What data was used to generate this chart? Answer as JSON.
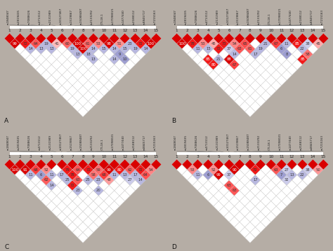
{
  "background_color": "#b5ada5",
  "n_snps": 15,
  "snp_labels": [
    "rs1848047",
    "rs2819435",
    "rs7088626",
    "rs4713112",
    "rs2131989",
    "rs10127467",
    "rs1519867",
    "rs15088487",
    "rs2133292",
    "CTL18.1",
    "rs17098021",
    "rs1477440",
    "rs2188112",
    "rs8845717",
    "rs7215163"
  ],
  "panels": [
    {
      "label": "A",
      "matrix": [
        [
          100,
          99,
          4,
          4,
          4,
          4,
          4,
          4,
          4,
          4,
          4,
          4,
          4,
          4,
          4
        ],
        [
          4,
          100,
          72,
          14,
          4,
          4,
          4,
          4,
          4,
          4,
          4,
          4,
          4,
          4,
          4
        ],
        [
          4,
          4,
          100,
          64,
          13,
          4,
          4,
          4,
          4,
          4,
          4,
          4,
          4,
          4,
          4
        ],
        [
          4,
          4,
          4,
          100,
          19,
          13,
          4,
          4,
          4,
          4,
          4,
          4,
          4,
          4,
          4
        ],
        [
          4,
          4,
          4,
          4,
          100,
          41,
          4,
          4,
          4,
          4,
          4,
          4,
          4,
          4,
          4
        ],
        [
          4,
          4,
          4,
          4,
          4,
          100,
          60,
          19,
          13,
          4,
          4,
          4,
          4,
          4,
          4
        ],
        [
          4,
          4,
          4,
          4,
          4,
          4,
          100,
          100,
          100,
          18,
          13,
          4,
          4,
          4,
          4
        ],
        [
          4,
          4,
          4,
          4,
          4,
          4,
          4,
          100,
          61,
          14,
          4,
          4,
          4,
          4,
          4
        ],
        [
          4,
          4,
          4,
          4,
          4,
          4,
          4,
          4,
          100,
          53,
          15,
          4,
          14,
          4,
          4
        ],
        [
          4,
          4,
          4,
          4,
          4,
          4,
          4,
          4,
          4,
          100,
          98,
          14,
          9,
          10,
          4
        ],
        [
          4,
          4,
          4,
          4,
          4,
          4,
          4,
          4,
          4,
          4,
          100,
          51,
          15,
          4,
          4
        ],
        [
          4,
          4,
          4,
          4,
          4,
          4,
          4,
          4,
          4,
          4,
          4,
          100,
          23,
          19,
          4
        ],
        [
          4,
          4,
          4,
          4,
          4,
          4,
          4,
          4,
          4,
          4,
          4,
          4,
          100,
          72,
          14
        ],
        [
          4,
          4,
          4,
          4,
          4,
          4,
          4,
          4,
          4,
          4,
          4,
          4,
          4,
          100,
          100
        ],
        [
          4,
          4,
          4,
          4,
          4,
          4,
          4,
          4,
          4,
          4,
          4,
          4,
          4,
          4,
          100
        ]
      ]
    },
    {
      "label": "B",
      "matrix": [
        [
          100,
          100,
          4,
          4,
          4,
          4,
          4,
          4,
          4,
          4,
          4,
          4,
          4,
          4,
          4
        ],
        [
          4,
          100,
          78,
          11,
          4,
          85,
          80,
          4,
          4,
          4,
          4,
          4,
          4,
          4,
          4
        ],
        [
          4,
          4,
          100,
          53,
          15,
          4,
          21,
          4,
          4,
          4,
          4,
          4,
          4,
          4,
          4
        ],
        [
          4,
          4,
          4,
          100,
          45,
          72,
          4,
          88,
          67,
          4,
          4,
          4,
          4,
          4,
          4
        ],
        [
          4,
          4,
          4,
          4,
          100,
          73,
          37,
          14,
          4,
          4,
          4,
          4,
          4,
          4,
          4
        ],
        [
          4,
          4,
          4,
          4,
          4,
          100,
          54,
          63,
          4,
          4,
          4,
          4,
          4,
          4,
          4
        ],
        [
          4,
          4,
          4,
          4,
          4,
          4,
          100,
          65,
          61,
          17,
          4,
          4,
          4,
          4,
          4
        ],
        [
          4,
          4,
          4,
          4,
          4,
          4,
          4,
          100,
          1,
          19,
          4,
          4,
          4,
          4,
          4
        ],
        [
          4,
          4,
          4,
          4,
          4,
          4,
          4,
          4,
          100,
          21,
          4,
          4,
          4,
          4,
          4
        ],
        [
          4,
          4,
          4,
          4,
          4,
          4,
          4,
          4,
          4,
          100,
          67,
          6,
          8,
          4,
          4
        ],
        [
          4,
          4,
          4,
          4,
          4,
          4,
          4,
          4,
          4,
          4,
          100,
          11,
          4,
          4,
          85
        ],
        [
          4,
          4,
          4,
          4,
          4,
          4,
          4,
          4,
          4,
          4,
          4,
          100,
          85,
          22,
          58
        ],
        [
          4,
          4,
          4,
          4,
          4,
          4,
          4,
          4,
          4,
          4,
          4,
          4,
          100,
          38,
          4
        ],
        [
          4,
          4,
          4,
          4,
          4,
          4,
          4,
          4,
          4,
          4,
          4,
          4,
          4,
          100,
          45
        ],
        [
          4,
          4,
          4,
          4,
          4,
          4,
          4,
          4,
          4,
          4,
          4,
          4,
          4,
          4,
          100
        ]
      ]
    },
    {
      "label": "C",
      "matrix": [
        [
          100,
          100,
          4,
          4,
          4,
          4,
          4,
          4,
          4,
          4,
          4,
          4,
          4,
          4,
          4
        ],
        [
          4,
          100,
          91,
          11,
          4,
          4,
          4,
          4,
          4,
          4,
          4,
          4,
          4,
          4,
          4
        ],
        [
          4,
          4,
          100,
          68,
          6,
          62,
          14,
          4,
          4,
          4,
          4,
          4,
          4,
          4,
          4
        ],
        [
          4,
          4,
          4,
          100,
          52,
          11,
          4,
          4,
          4,
          4,
          4,
          4,
          4,
          4,
          4
        ],
        [
          4,
          4,
          4,
          4,
          100,
          4,
          17,
          25,
          72,
          23,
          4,
          4,
          4,
          4,
          4
        ],
        [
          4,
          4,
          4,
          4,
          4,
          100,
          79,
          78,
          63,
          4,
          4,
          4,
          4,
          4,
          4
        ],
        [
          4,
          4,
          4,
          4,
          4,
          4,
          100,
          64,
          4,
          25,
          4,
          20,
          4,
          4,
          4
        ],
        [
          4,
          4,
          4,
          4,
          4,
          4,
          4,
          100,
          72,
          58,
          23,
          4,
          4,
          4,
          4
        ],
        [
          4,
          4,
          4,
          4,
          4,
          4,
          4,
          4,
          100,
          59,
          68,
          48,
          4,
          4,
          4
        ],
        [
          4,
          4,
          4,
          4,
          4,
          4,
          4,
          4,
          4,
          100,
          99,
          11,
          4,
          4,
          4
        ],
        [
          4,
          4,
          4,
          4,
          4,
          4,
          4,
          4,
          4,
          4,
          100,
          80,
          13,
          27,
          4
        ],
        [
          4,
          4,
          4,
          4,
          4,
          4,
          4,
          4,
          4,
          4,
          4,
          100,
          62,
          17,
          14
        ],
        [
          4,
          4,
          4,
          4,
          4,
          4,
          4,
          4,
          4,
          4,
          4,
          4,
          100,
          72,
          64
        ],
        [
          4,
          4,
          4,
          4,
          4,
          4,
          4,
          4,
          4,
          4,
          4,
          4,
          4,
          100,
          54
        ],
        [
          4,
          4,
          4,
          4,
          4,
          4,
          4,
          4,
          4,
          4,
          4,
          4,
          4,
          4,
          100
        ]
      ]
    },
    {
      "label": "D",
      "matrix": [
        [
          100,
          4,
          4,
          4,
          4,
          4,
          4,
          4,
          4,
          4,
          4,
          4,
          4,
          4,
          4
        ],
        [
          4,
          100,
          53,
          11,
          4,
          4,
          4,
          4,
          4,
          4,
          4,
          4,
          4,
          4,
          4
        ],
        [
          4,
          4,
          100,
          4,
          6,
          4,
          4,
          4,
          4,
          4,
          4,
          4,
          4,
          4,
          4
        ],
        [
          4,
          4,
          4,
          100,
          52,
          99,
          4,
          63,
          63,
          4,
          4,
          4,
          4,
          4,
          4
        ],
        [
          4,
          4,
          4,
          4,
          100,
          4,
          37,
          4,
          4,
          4,
          4,
          4,
          4,
          4,
          4
        ],
        [
          4,
          4,
          4,
          4,
          4,
          100,
          90,
          4,
          4,
          4,
          4,
          4,
          4,
          4,
          4
        ],
        [
          4,
          4,
          4,
          4,
          4,
          4,
          100,
          4,
          4,
          17,
          4,
          4,
          4,
          4,
          4
        ],
        [
          4,
          4,
          4,
          4,
          4,
          4,
          4,
          100,
          72,
          4,
          4,
          4,
          4,
          4,
          4
        ],
        [
          4,
          4,
          4,
          4,
          4,
          4,
          4,
          4,
          100,
          4,
          4,
          4,
          4,
          4,
          4
        ],
        [
          4,
          4,
          4,
          4,
          4,
          4,
          4,
          4,
          4,
          100,
          63,
          7,
          32,
          4,
          4
        ],
        [
          4,
          4,
          4,
          4,
          4,
          4,
          4,
          4,
          4,
          4,
          100,
          27,
          13,
          4,
          4
        ],
        [
          4,
          4,
          4,
          4,
          4,
          4,
          4,
          4,
          4,
          4,
          4,
          100,
          4,
          22,
          4
        ],
        [
          4,
          4,
          4,
          4,
          4,
          4,
          4,
          4,
          4,
          4,
          4,
          4,
          100,
          38,
          4
        ],
        [
          4,
          4,
          4,
          4,
          4,
          4,
          4,
          4,
          4,
          4,
          4,
          4,
          4,
          100,
          50
        ],
        [
          4,
          4,
          4,
          4,
          4,
          4,
          4,
          4,
          4,
          4,
          4,
          4,
          4,
          4,
          100
        ]
      ]
    }
  ],
  "cell_size": 1.0,
  "blue_color": "#9999cc",
  "white_color": "#ffffff",
  "pink_light": "#ffcccc",
  "pink_med": "#ff8888",
  "red_med": "#ee2222",
  "red_dark": "#cc0000",
  "text_color_dark": "#333333",
  "text_color_white": "#ffffff",
  "text_fontsize": 3.8,
  "num_fontsize": 4.2,
  "snp_fontsize": 3.0,
  "label_fontsize": 6.5
}
